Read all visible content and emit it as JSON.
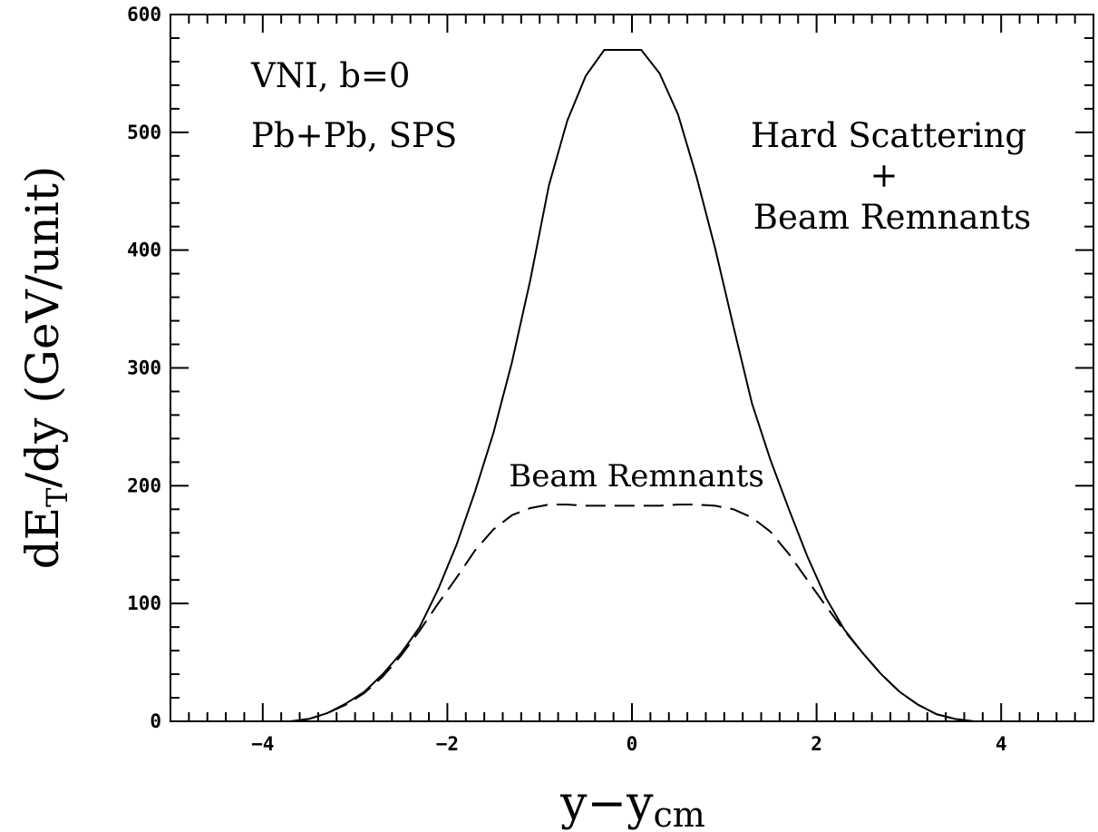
{
  "chart_data": {
    "type": "line",
    "xlabel": "y−y",
    "xlabel_sub": "cm",
    "ylabel_pre": "dE",
    "ylabel_sub": "T",
    "ylabel_post": "/dy (GeV/unit)",
    "xlim": [
      -5,
      5
    ],
    "ylim": [
      0,
      600
    ],
    "x_ticks": [
      -4,
      -2,
      0,
      2,
      4
    ],
    "x_tick_labels": [
      "−4",
      "−2",
      "0",
      "2",
      "4"
    ],
    "y_ticks": [
      0,
      100,
      200,
      300,
      400,
      500,
      600
    ],
    "y_tick_labels": [
      "0",
      "100",
      "200",
      "300",
      "400",
      "500",
      "600"
    ],
    "annotations": {
      "line1": "VNI, b=0",
      "line2": "Pb+Pb, SPS",
      "hard1": "Hard Scattering",
      "hard2": "+",
      "hard3": "Beam Remnants",
      "beam": "Beam Remnants"
    },
    "series": [
      {
        "style": "solid",
        "x": [
          -3.9,
          -3.7,
          -3.5,
          -3.3,
          -3.1,
          -2.9,
          -2.7,
          -2.5,
          -2.3,
          -2.1,
          -1.9,
          -1.7,
          -1.5,
          -1.3,
          -1.1,
          -0.9,
          -0.7,
          -0.5,
          -0.3,
          -0.1,
          0.1,
          0.3,
          0.5,
          0.7,
          0.9,
          1.1,
          1.3,
          1.5,
          1.7,
          1.9,
          2.1,
          2.3,
          2.5,
          2.7,
          2.9,
          3.1,
          3.3,
          3.5,
          3.7,
          3.9,
          4.5,
          5.0
        ],
        "y": [
          0,
          0,
          2,
          7,
          15,
          25,
          40,
          58,
          80,
          112,
          150,
          195,
          245,
          305,
          375,
          455,
          510,
          548,
          570,
          570,
          570,
          550,
          515,
          462,
          402,
          335,
          270,
          222,
          180,
          140,
          105,
          78,
          58,
          40,
          25,
          14,
          6,
          2,
          0,
          0,
          0,
          0
        ]
      },
      {
        "style": "dashed",
        "x": [
          -3.9,
          -3.7,
          -3.5,
          -3.3,
          -3.1,
          -2.9,
          -2.7,
          -2.5,
          -2.3,
          -2.1,
          -1.9,
          -1.7,
          -1.5,
          -1.3,
          -1.1,
          -0.9,
          -0.7,
          -0.5,
          -0.3,
          -0.1,
          0.1,
          0.3,
          0.5,
          0.7,
          0.9,
          1.1,
          1.3,
          1.5,
          1.7,
          1.9,
          2.1,
          2.3,
          2.5,
          2.7,
          2.9,
          3.1,
          3.3,
          3.5,
          3.7,
          3.9,
          4.5,
          5.0
        ],
        "y": [
          0,
          0,
          2,
          7,
          14,
          24,
          38,
          56,
          77,
          100,
          122,
          145,
          163,
          175,
          181,
          184,
          184,
          183,
          183,
          183,
          183,
          183,
          184,
          184,
          183,
          180,
          173,
          161,
          142,
          120,
          98,
          77,
          58,
          40,
          25,
          14,
          6,
          2,
          0,
          0,
          0,
          0
        ]
      }
    ]
  }
}
